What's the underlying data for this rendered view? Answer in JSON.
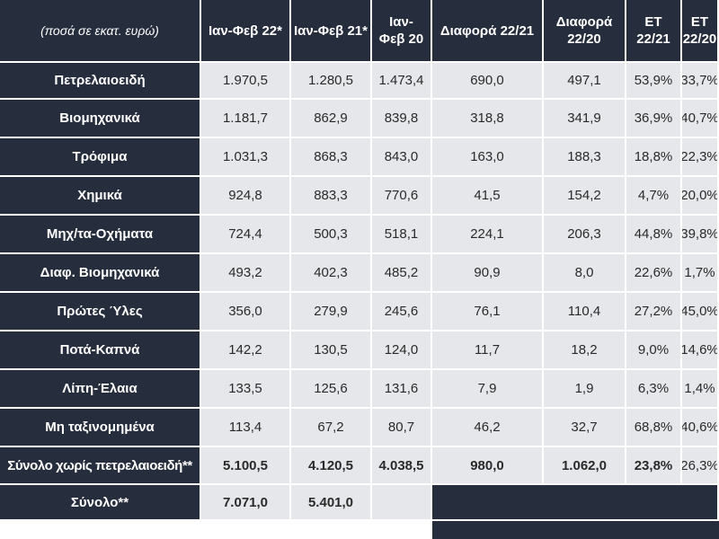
{
  "header": {
    "caption": "(ποσά σε εκατ. ευρώ)",
    "col1": "Ιαν-Φεβ 22*",
    "col2": "Ιαν-Φεβ 21*",
    "col3_line1": "Ιαν-",
    "col3_line2": "Φεβ 20",
    "col4": "Διαφορά 22/21",
    "col5_line1": "Διαφορά",
    "col5_line2": "22/20",
    "col6": "ΕΤ 22/21",
    "col7_line1": "ΕΤ",
    "col7_line2": "22/20"
  },
  "rows": [
    {
      "label": "Πετρελαιοειδή",
      "v": [
        "1.970,5",
        "1.280,5",
        "1.473,4",
        "690,0",
        "497,1",
        "53,9%",
        "33,7%"
      ]
    },
    {
      "label": "Βιομηχανικά",
      "v": [
        "1.181,7",
        "862,9",
        "839,8",
        "318,8",
        "341,9",
        "36,9%",
        "40,7%"
      ]
    },
    {
      "label": "Τρόφιμα",
      "v": [
        "1.031,3",
        "868,3",
        "843,0",
        "163,0",
        "188,3",
        "18,8%",
        "22,3%"
      ]
    },
    {
      "label": "Χημικά",
      "v": [
        "924,8",
        "883,3",
        "770,6",
        "41,5",
        "154,2",
        "4,7%",
        "20,0%"
      ]
    },
    {
      "label": "Μηχ/τα-Οχήματα",
      "v": [
        "724,4",
        "500,3",
        "518,1",
        "224,1",
        "206,3",
        "44,8%",
        "39,8%"
      ]
    },
    {
      "label": "Διαφ. Βιομηχανικά",
      "v": [
        "493,2",
        "402,3",
        "485,2",
        "90,9",
        "8,0",
        "22,6%",
        "1,7%"
      ]
    },
    {
      "label": "Πρώτες Ύλες",
      "v": [
        "356,0",
        "279,9",
        "245,6",
        "76,1",
        "110,4",
        "27,2%",
        "45,0%"
      ]
    },
    {
      "label": "Ποτά-Καπνά",
      "v": [
        "142,2",
        "130,5",
        "124,0",
        "11,7",
        "18,2",
        "9,0%",
        "14,6%"
      ]
    },
    {
      "label": "Λίπη-Έλαια",
      "v": [
        "133,5",
        "125,6",
        "131,6",
        "7,9",
        "1,9",
        "6,3%",
        "1,4%"
      ]
    },
    {
      "label": "Μη ταξινομημένα",
      "v": [
        "113,4",
        "67,2",
        "80,7",
        "46,2",
        "32,7",
        "68,8%",
        "40,6%"
      ]
    },
    {
      "label": "Σύνολο χωρίς πετρελαιοειδή**",
      "v": [
        "5.100,5",
        "4.120,5",
        "4.038,5",
        "980,0",
        "1.062,0",
        "23,8%",
        "26,3%"
      ]
    }
  ],
  "total": {
    "label": "Σύνολο**",
    "v1": "7.071,0",
    "v2": "5.401,0"
  },
  "colors": {
    "dark": "#262d3c",
    "light": "#e6e7ea"
  }
}
